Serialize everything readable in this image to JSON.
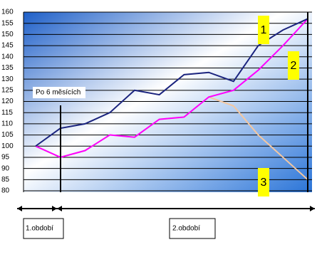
{
  "chart_data": {
    "type": "line",
    "categories": [
      null,
      null,
      null,
      null,
      null,
      null,
      null,
      null,
      null,
      null,
      null,
      null
    ],
    "series": [
      {
        "color": "#1a237e",
        "values": [
          100,
          108,
          110,
          115,
          125,
          123,
          132,
          133,
          129,
          145,
          152,
          157
        ]
      },
      {
        "color": "#ff00ff",
        "values": [
          100,
          95,
          98,
          105,
          104,
          112,
          113,
          122,
          125,
          134,
          145,
          157
        ]
      },
      {
        "color": "#f4c7a0",
        "values": [
          100,
          95,
          98,
          105,
          104,
          112,
          113,
          122,
          118,
          105,
          95,
          85
        ]
      }
    ],
    "ylim": [
      80,
      160
    ],
    "yticks": [
      80,
      85,
      90,
      95,
      100,
      105,
      110,
      115,
      120,
      125,
      130,
      135,
      140,
      145,
      150,
      155,
      160
    ],
    "grid": true,
    "annotations": [
      "Po 6 měsících",
      "1",
      "2",
      "3"
    ],
    "periods": [
      "1.období",
      "2.období"
    ]
  }
}
